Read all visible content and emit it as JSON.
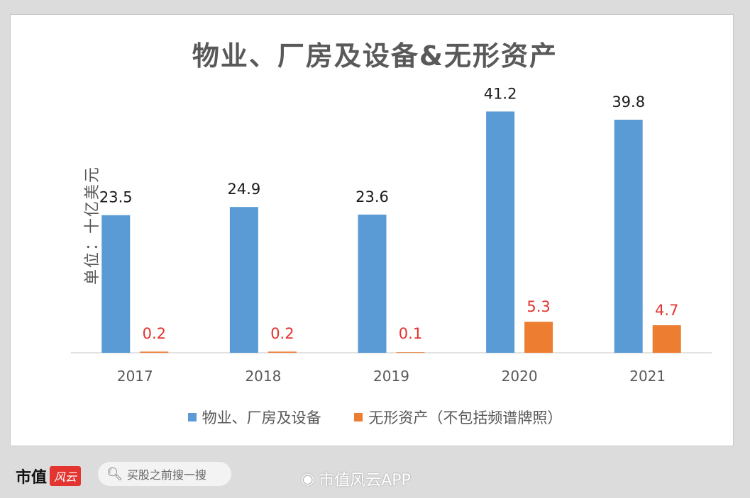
{
  "title": "物业、厂房及设备&无形资产",
  "y_unit": "单位：十亿美元",
  "colors": {
    "series_ppe": "#5b9bd5",
    "series_intangible": "#ed7d31",
    "label_ppe": "#1a1a1a",
    "label_intangible": "#e3342f",
    "axis_text": "#595959"
  },
  "chart_data": {
    "type": "bar",
    "categories": [
      "2017",
      "2018",
      "2019",
      "2020",
      "2021"
    ],
    "series": [
      {
        "name": "物业、厂房及设备",
        "values": [
          23.5,
          24.9,
          23.6,
          41.2,
          39.8
        ]
      },
      {
        "name": "无形资产（不包括频谱牌照）",
        "values": [
          0.2,
          0.2,
          0.1,
          5.3,
          4.7
        ]
      }
    ],
    "ylim": [
      0,
      45
    ],
    "legend_position": "bottom",
    "grid": false
  },
  "footer": {
    "logo_text": "市值",
    "logo_badge": "风云",
    "search_icon": "search-icon",
    "search_text": "买股之前搜一搜",
    "watermark_icon": "weibo-icon",
    "watermark_text": "市值风云APP"
  }
}
